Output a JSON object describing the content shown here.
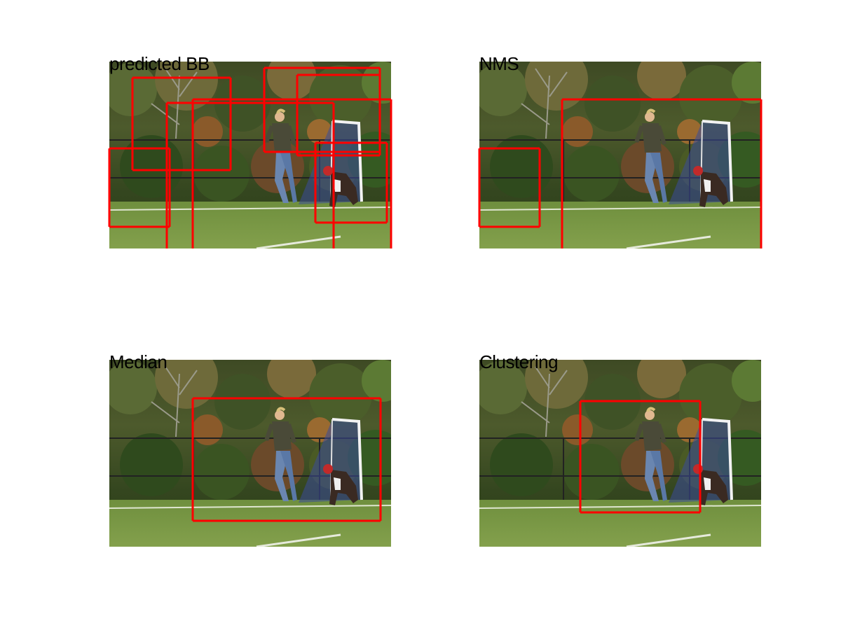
{
  "panels": [
    {
      "title": "predicted BB",
      "boxes": [
        [
          33,
          23,
          173,
          155
        ],
        [
          82,
          59,
          320,
          300
        ],
        [
          119,
          54,
          402,
          300
        ],
        [
          0,
          124,
          86,
          236
        ],
        [
          221,
          9,
          386,
          129
        ],
        [
          268,
          19,
          386,
          134
        ],
        [
          294,
          116,
          396,
          230
        ]
      ]
    },
    {
      "title": "NMS",
      "boxes": [
        [
          118,
          54,
          402,
          300
        ],
        [
          0,
          124,
          86,
          236
        ]
      ]
    },
    {
      "title": "Median",
      "boxes": [
        [
          119,
          55,
          387,
          230
        ]
      ]
    },
    {
      "title": "Clustering",
      "boxes": [
        [
          144,
          59,
          315,
          218
        ]
      ]
    }
  ],
  "box_color": "#ff0000"
}
